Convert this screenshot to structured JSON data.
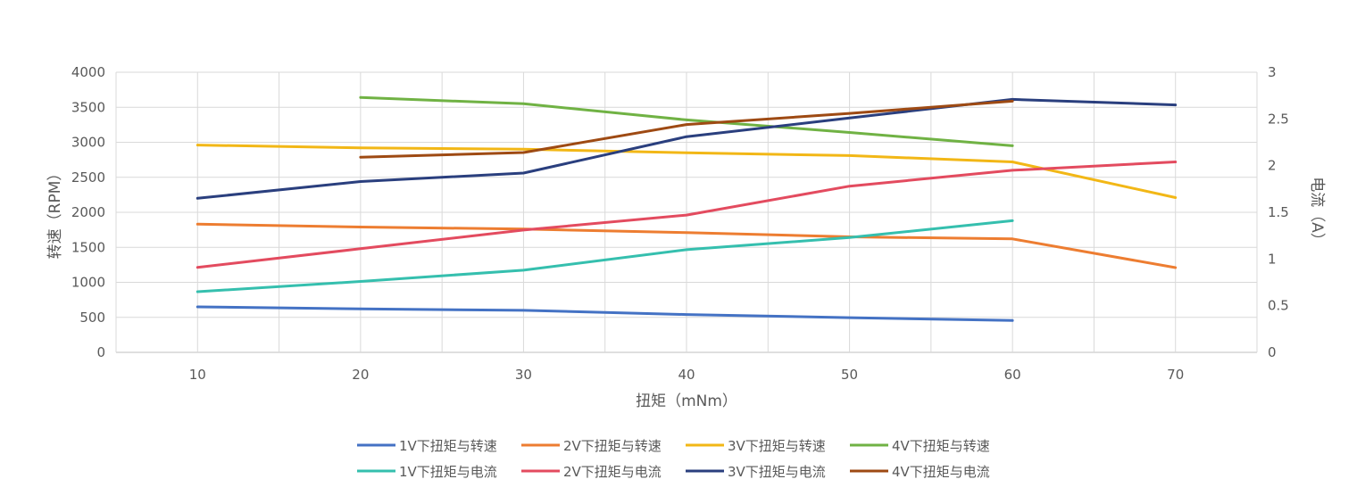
{
  "chart_data": {
    "type": "line",
    "x": [
      10,
      20,
      30,
      40,
      50,
      60,
      70
    ],
    "xlabel": "扭矩（mNm）",
    "ylabel": "转速（RPM）",
    "y2label": "电流（A）",
    "xlim": [
      5,
      75
    ],
    "ylim": [
      0,
      4000
    ],
    "y2lim": [
      0,
      3
    ],
    "xticks": [
      10,
      20,
      30,
      40,
      50,
      60,
      70
    ],
    "yticks": [
      0,
      500,
      1000,
      1500,
      2000,
      2500,
      3000,
      3500,
      4000
    ],
    "y2ticks": [
      "0",
      "0.5",
      "1",
      "1.5",
      "2",
      "2.5",
      "3"
    ],
    "grid": true,
    "legend_position": "bottom",
    "series": [
      {
        "name": "1V下扭矩与转速",
        "axis": "left",
        "color": "#4472C4",
        "x": [
          10,
          20,
          30,
          40,
          50,
          60
        ],
        "values": [
          650,
          620,
          600,
          540,
          495,
          455
        ]
      },
      {
        "name": "2V下扭矩与转速",
        "axis": "left",
        "color": "#ED7D31",
        "x": [
          10,
          20,
          30,
          40,
          50,
          60,
          70
        ],
        "values": [
          1830,
          1790,
          1760,
          1710,
          1650,
          1620,
          1210
        ]
      },
      {
        "name": "3V下扭矩与转速",
        "axis": "left",
        "color": "#F2B716",
        "x": [
          10,
          20,
          30,
          40,
          50,
          60,
          70
        ],
        "values": [
          2960,
          2920,
          2900,
          2850,
          2810,
          2720,
          2210
        ]
      },
      {
        "name": "4V下扭矩与转速",
        "axis": "left",
        "color": "#70B244",
        "x": [
          20,
          30,
          40,
          50,
          60
        ],
        "values": [
          3640,
          3550,
          3320,
          3140,
          2950
        ]
      },
      {
        "name": "1V下扭矩与电流",
        "axis": "right",
        "color": "#35BFAE",
        "x": [
          10,
          20,
          30,
          40,
          50,
          60
        ],
        "values": [
          0.65,
          0.76,
          0.88,
          1.1,
          1.23,
          1.41
        ]
      },
      {
        "name": "2V下扭矩与电流",
        "axis": "right",
        "color": "#E34B5F",
        "x": [
          10,
          20,
          30,
          40,
          50,
          60,
          70
        ],
        "values": [
          0.91,
          1.11,
          1.31,
          1.47,
          1.78,
          1.95,
          2.04
        ]
      },
      {
        "name": "3V下扭矩与电流",
        "axis": "right",
        "color": "#2A3F7E",
        "x": [
          10,
          20,
          30,
          40,
          50,
          60,
          70
        ],
        "values": [
          1.65,
          1.83,
          1.92,
          2.31,
          2.51,
          2.71,
          2.65
        ]
      },
      {
        "name": "4V下扭矩与电流",
        "axis": "right",
        "color": "#9E4A13",
        "x": [
          20,
          30,
          40,
          50,
          60
        ],
        "values": [
          2.09,
          2.14,
          2.44,
          2.56,
          2.69
        ]
      }
    ]
  }
}
